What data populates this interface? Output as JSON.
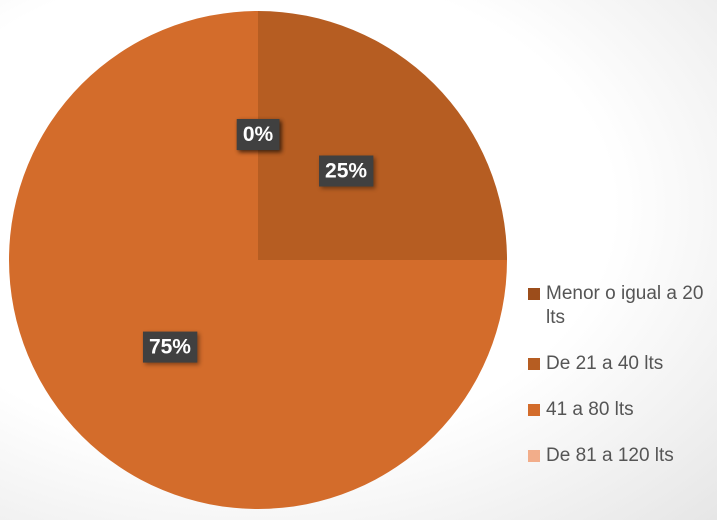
{
  "chart_data": {
    "type": "pie",
    "categories": [
      "Menor o igual a 20 lts",
      "De 21 a 40 lts",
      "41 a 80 lts",
      "De 81 a 120 lts"
    ],
    "values": [
      0,
      25,
      75,
      0
    ],
    "value_labels": [
      "0%",
      "25%",
      "75%",
      "0%"
    ],
    "colors": [
      "#9c4d1b",
      "#b65d22",
      "#d36c2b",
      "#f2ad8a"
    ],
    "legend": "right"
  }
}
